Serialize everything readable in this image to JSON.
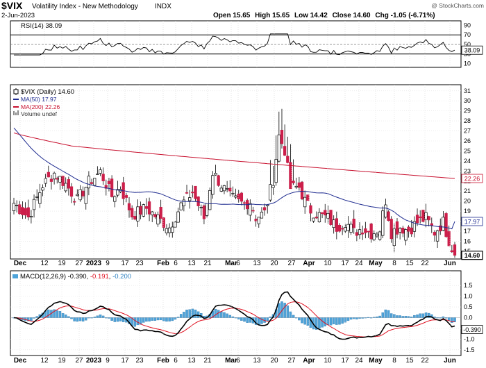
{
  "header": {
    "symbol": "$VIX",
    "name": "Volatility Index - New Methodology",
    "exchange": "INDX",
    "date": "2-Jun-2023",
    "watermark": "@ StockCharts.com",
    "quote": {
      "open_label": "Open",
      "open": "15.65",
      "high_label": "High",
      "high": "15.65",
      "low_label": "Low",
      "low": "14.42",
      "close_label": "Close",
      "close": "14.60",
      "chg_label": "Chg",
      "chg": "-1.05 (-6.71%)"
    }
  },
  "rsi_panel": {
    "legend": "RSI(14) 38.09",
    "current_label": "38.09",
    "ticks": [
      "90",
      "70",
      "50",
      "30",
      "10"
    ]
  },
  "price_panel": {
    "legend": [
      "$VIX (Daily) 14.60",
      "MA(50) 17.97",
      "MA(200) 22.26",
      "Volume undef"
    ],
    "y_ticks": [
      "31",
      "30",
      "29",
      "28",
      "27",
      "26",
      "25",
      "24",
      "23",
      "22",
      "21",
      "20",
      "19",
      "18",
      "17",
      "16",
      "15"
    ],
    "ma200_label": "22.26",
    "ma50_label": "17.97",
    "last_label": "14.60"
  },
  "macd_panel": {
    "legend_prefix": "MACD(12,26,9)",
    "macd_value": "-0.390",
    "signal_value": "-0.191",
    "hist_value": "-0.200",
    "y_ticks": [
      "1.5",
      "1.0",
      "0.5",
      "0.0",
      "-0.5",
      "-1.0",
      "-1.5"
    ],
    "current_label": "-0.390"
  },
  "x_axis": [
    "Dec",
    "12",
    "19",
    "27",
    "2023",
    "9",
    "17",
    "23",
    "Feb",
    "6",
    "13",
    "21",
    "Mar",
    "6",
    "13",
    "20",
    "27",
    "Apr",
    "10",
    "17",
    "24",
    "May",
    "8",
    "15",
    "22",
    "Jun"
  ],
  "colors": {
    "up": "#ffffff",
    "down": "#cc1f4a",
    "ma50": "#1d2a8f",
    "ma200": "#c8102e",
    "macd": "#000000",
    "signal": "#e01020",
    "hist": "#4ea3d9"
  },
  "chart_data": {
    "type": "candlestick",
    "symbol": "$VIX",
    "period": "Daily",
    "x_range": [
      "2022-12-01",
      "2023-06-02"
    ],
    "closes_sample": [
      {
        "date": "2022-12-01",
        "close": 19.8
      },
      {
        "date": "2022-12-15",
        "close": 22.8
      },
      {
        "date": "2023-01-03",
        "close": 22.9
      },
      {
        "date": "2023-01-19",
        "close": 20.5
      },
      {
        "date": "2023-02-03",
        "close": 18.3
      },
      {
        "date": "2023-02-21",
        "close": 22.9
      },
      {
        "date": "2023-03-02",
        "close": 18.5
      },
      {
        "date": "2023-03-13",
        "close": 26.5
      },
      {
        "date": "2023-03-17",
        "close": 25.5
      },
      {
        "date": "2023-04-05",
        "close": 18.6
      },
      {
        "date": "2023-04-21",
        "close": 16.8
      },
      {
        "date": "2023-05-04",
        "close": 20.1
      },
      {
        "date": "2023-05-31",
        "close": 17.9
      },
      {
        "date": "2023-06-02",
        "close": 14.6
      }
    ],
    "last": {
      "open": 15.65,
      "high": 15.65,
      "low": 14.42,
      "close": 14.6
    },
    "ma50_last": 17.97,
    "ma200_last": 22.26,
    "rsi14_last": 38.09,
    "macd": {
      "macd": -0.39,
      "signal": -0.191,
      "histogram": -0.2
    },
    "price_ylim": [
      14.5,
      31
    ],
    "rsi_ylim": [
      10,
      90
    ],
    "macd_ylim": [
      -1.6,
      1.6
    ]
  }
}
